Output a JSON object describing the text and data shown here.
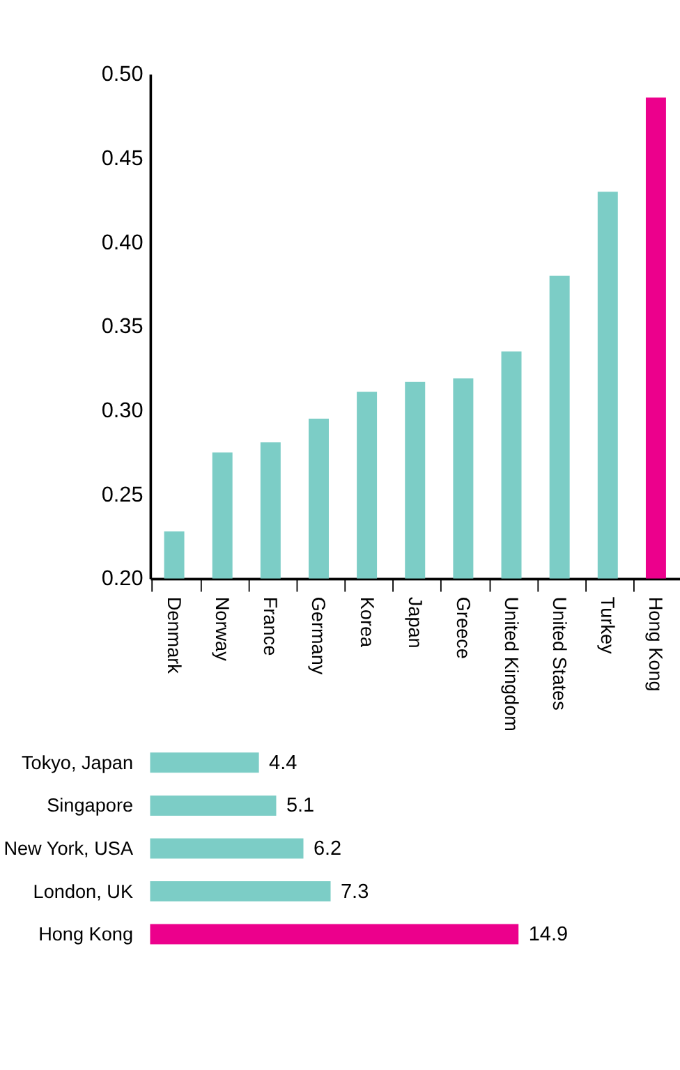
{
  "chart_data": [
    {
      "type": "bar",
      "categories": [
        "Denmark",
        "Norway",
        "France",
        "Germany",
        "Korea",
        "Japan",
        "Greece",
        "United Kingdom",
        "United States",
        "Turkey",
        "Hong Kong"
      ],
      "values": [
        0.228,
        0.275,
        0.281,
        0.295,
        0.311,
        0.317,
        0.319,
        0.335,
        0.38,
        0.43,
        0.486
      ],
      "colors": [
        "#7ccdc6",
        "#7ccdc6",
        "#7ccdc6",
        "#7ccdc6",
        "#7ccdc6",
        "#7ccdc6",
        "#7ccdc6",
        "#7ccdc6",
        "#7ccdc6",
        "#7ccdc6",
        "#ec008c"
      ],
      "ylim": [
        0.2,
        0.5
      ],
      "yticks": [
        {
          "value": 0.2,
          "label": "0.20"
        },
        {
          "value": 0.25,
          "label": "0.25"
        },
        {
          "value": 0.3,
          "label": "0.30"
        },
        {
          "value": 0.35,
          "label": "0.35"
        },
        {
          "value": 0.4,
          "label": "0.40"
        },
        {
          "value": 0.45,
          "label": "0.45"
        },
        {
          "value": 0.5,
          "label": "0.50"
        }
      ],
      "grid": false
    },
    {
      "type": "bar",
      "orientation": "horizontal",
      "categories": [
        "Tokyo, Japan",
        "Singapore",
        "New York, USA",
        "London, UK",
        "Hong Kong"
      ],
      "values": [
        4.4,
        5.1,
        6.2,
        7.3,
        14.9
      ],
      "colors": [
        "#7ccdc6",
        "#7ccdc6",
        "#7ccdc6",
        "#7ccdc6",
        "#ec008c"
      ],
      "data_labels": true,
      "grid": false
    }
  ]
}
